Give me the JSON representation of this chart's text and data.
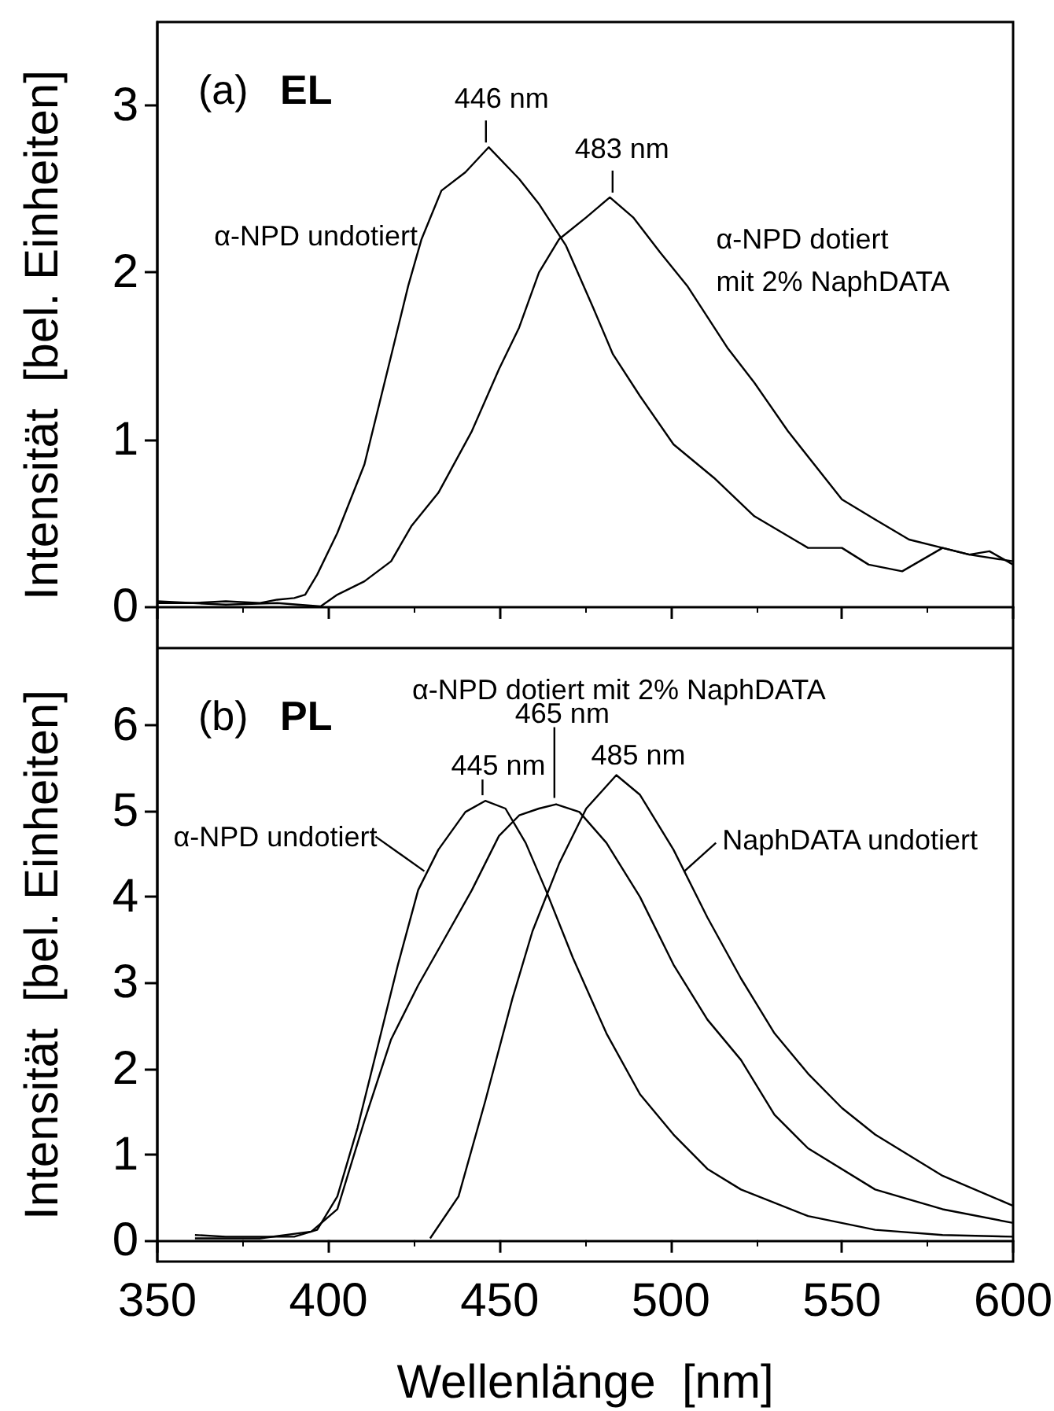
{
  "chart_data": [
    {
      "type": "line",
      "title": "(a)",
      "subtitle": "EL",
      "ylabel": "Intensität  [bel. Einheiten]",
      "xlim": [
        350,
        600
      ],
      "xticks": [
        350,
        400,
        450,
        500,
        550,
        600
      ],
      "ylim": [
        -0.25,
        3.5
      ],
      "yticks": [
        0,
        1,
        2,
        3
      ],
      "tick_labels": "y",
      "marker": "none",
      "series": [
        {
          "color": "#000000",
          "x": [
            350,
            360,
            370,
            380,
            385,
            390,
            393.2,
            396.7,
            402.6,
            410.5,
            418.3,
            423.3,
            427.2,
            433,
            440,
            446.8,
            455.7,
            461.5,
            469.4,
            477.3,
            483.1,
            491,
            500.8,
            512.6,
            524.4,
            540.1,
            550,
            557.8,
            567.6,
            579.4,
            587.2,
            593.1,
            600
          ],
          "values": [
            0.02,
            0.02,
            0.03,
            0.02,
            0.04,
            0.05,
            0.07,
            0.19,
            0.44,
            0.85,
            1.5,
            1.92,
            2.2,
            2.49,
            2.6,
            2.75,
            2.56,
            2.41,
            2.16,
            1.79,
            1.51,
            1.26,
            0.97,
            0.77,
            0.54,
            0.35,
            0.35,
            0.25,
            0.21,
            0.35,
            0.31,
            0.33,
            0.25
          ]
        },
        {
          "color": "#000000",
          "x": [
            350,
            370,
            385,
            397.7,
            402.6,
            410.5,
            418.3,
            424.2,
            432.1,
            441.9,
            449.8,
            455.7,
            461.5,
            467.4,
            475.3,
            482.2,
            489,
            496.9,
            504.8,
            516.5,
            524.4,
            534.2,
            550,
            559.7,
            569.6,
            579.4,
            587.2,
            600
          ],
          "values": [
            0.03,
            0.01,
            0.02,
            0.0,
            0.07,
            0.15,
            0.27,
            0.48,
            0.68,
            1.05,
            1.42,
            1.67,
            2.0,
            2.2,
            2.33,
            2.45,
            2.33,
            2.12,
            1.92,
            1.55,
            1.34,
            1.05,
            0.64,
            0.52,
            0.4,
            0.35,
            0.31,
            0.27
          ]
        }
      ],
      "annotations": [
        {
          "text": "446 nm",
          "x": 446,
          "y": 2.75
        },
        {
          "text": "483 nm",
          "x": 483,
          "y": 2.45
        },
        {
          "text": "α-NPD undotiert",
          "x": 427,
          "y": 2.2
        },
        {
          "text": "α-NPD dotiert\nmit 2% NaphDATA",
          "x": 505,
          "y": 1.95
        }
      ]
    },
    {
      "type": "line",
      "title": "(b)",
      "subtitle": "PL",
      "xlabel": "Wellenlänge  [nm]",
      "ylabel": "Intensität  [bel. Einheiten]",
      "xlim": [
        350,
        600
      ],
      "xticks": [
        350,
        400,
        450,
        500,
        550,
        600
      ],
      "ylim": [
        -0.25,
        6.9
      ],
      "yticks": [
        0,
        1,
        2,
        3,
        4,
        5,
        6
      ],
      "marker": "none",
      "series": [
        {
          "color": "#000000",
          "x": [
            361,
            370,
            390,
            396.7,
            402.6,
            408.5,
            414.4,
            420.3,
            426.2,
            432.1,
            440,
            445.8,
            451.7,
            457.6,
            463.5,
            471.4,
            481.2,
            491,
            500.8,
            510.7,
            520.5,
            540.1,
            559.7,
            579.4,
            600
          ],
          "values": [
            0.06,
            0.04,
            0.04,
            0.12,
            0.51,
            1.31,
            2.26,
            3.21,
            4.08,
            4.55,
            4.99,
            5.12,
            5.03,
            4.63,
            4.08,
            3.29,
            2.41,
            1.7,
            1.23,
            0.83,
            0.59,
            0.28,
            0.12,
            0.06,
            0.04
          ]
        },
        {
          "color": "#000000",
          "x": [
            361,
            380,
            395,
            402.6,
            410.5,
            418.3,
            426.2,
            434,
            441.9,
            449.8,
            455.7,
            461.5,
            466.5,
            473.3,
            481.2,
            491,
            500.8,
            510.7,
            520.5,
            530.3,
            540.1,
            559.7,
            579.4,
            600
          ],
          "values": [
            0.02,
            0.02,
            0.1,
            0.36,
            1.39,
            2.34,
            2.97,
            3.52,
            4.08,
            4.71,
            4.95,
            5.03,
            5.08,
            4.99,
            4.63,
            4.0,
            3.21,
            2.57,
            2.1,
            1.46,
            1.07,
            0.59,
            0.36,
            0.2
          ]
        },
        {
          "color": "#000000",
          "x": [
            429.7,
            438,
            445.8,
            453.7,
            459.6,
            467.4,
            475.3,
            484.1,
            491,
            500.8,
            510.7,
            520.5,
            530.3,
            540.1,
            550,
            559.7,
            579.4,
            600
          ],
          "values": [
            0.02,
            0.51,
            1.62,
            2.81,
            3.6,
            4.39,
            5.03,
            5.42,
            5.19,
            4.55,
            3.76,
            3.05,
            2.41,
            1.94,
            1.54,
            1.23,
            0.75,
            0.4
          ]
        }
      ],
      "annotations": [
        {
          "text": "445 nm",
          "x": 445,
          "y": 5.13
        },
        {
          "text": "465 nm",
          "x": 466,
          "y": 5.08
        },
        {
          "text": "α-NPD dotiert mit 2% NaphDATA",
          "x": 466,
          "y": 5.08
        },
        {
          "text": "485 nm",
          "x": 485,
          "y": 5.45
        },
        {
          "text": "α-NPD undotiert",
          "x": 428,
          "y": 4.3
        },
        {
          "text": "NaphDATA undotiert",
          "x": 504,
          "y": 4.3
        }
      ]
    }
  ]
}
